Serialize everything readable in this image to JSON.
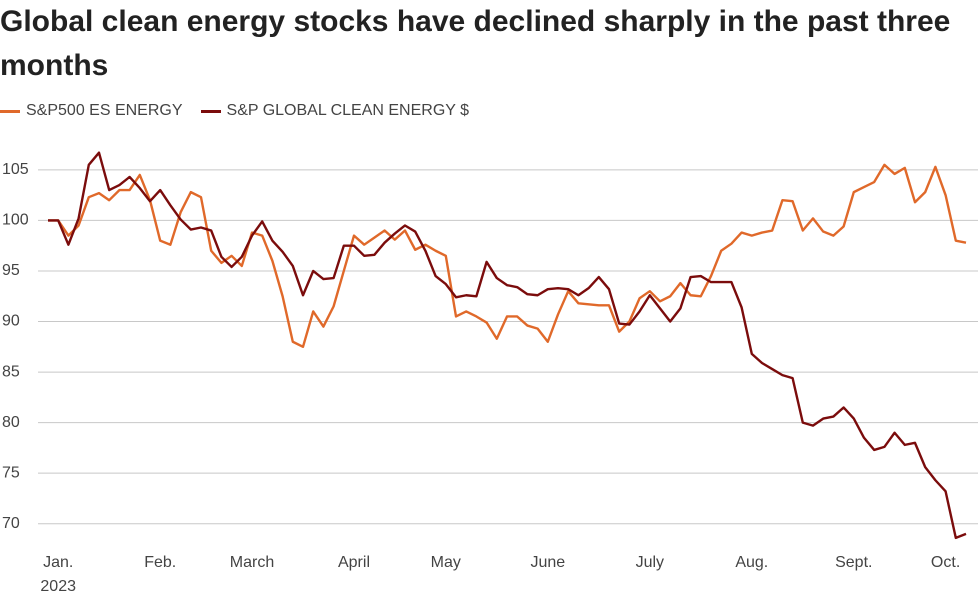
{
  "chart_data": {
    "type": "line",
    "title": "Global clean energy stocks have declined sharply in the past three months",
    "categories": [
      null,
      "Jan.",
      null,
      null,
      null,
      null,
      null,
      null,
      null,
      null,
      null,
      "Feb.",
      null,
      null,
      null,
      null,
      null,
      null,
      null,
      null,
      "March",
      null,
      null,
      null,
      null,
      null,
      null,
      null,
      null,
      null,
      "April",
      null,
      null,
      null,
      null,
      null,
      null,
      null,
      null,
      "May",
      null,
      null,
      null,
      null,
      null,
      null,
      null,
      null,
      null,
      "June",
      null,
      null,
      null,
      null,
      null,
      null,
      null,
      null,
      null,
      "July",
      null,
      null,
      null,
      null,
      null,
      null,
      null,
      null,
      null,
      "Aug.",
      null,
      null,
      null,
      null,
      null,
      null,
      null,
      null,
      null,
      "Sept.",
      null,
      null,
      null,
      null,
      null,
      null,
      null,
      null,
      "Oct.",
      null,
      null
    ],
    "year_label": "2023",
    "series": [
      {
        "name": "S&P500 ES ENERGY",
        "color": "#e0692a",
        "values": [
          100,
          100,
          98.5,
          99.5,
          102.3,
          102.7,
          102,
          103,
          103,
          104.5,
          102,
          98,
          97.6,
          100.8,
          102.8,
          102.3,
          97,
          95.8,
          96.5,
          95.5,
          98.8,
          98.5,
          96,
          92.5,
          88,
          87.5,
          91,
          89.5,
          91.5,
          95,
          98.5,
          97.6,
          98.3,
          99,
          98.1,
          99,
          97.1,
          97.6,
          97,
          96.5,
          90.5,
          91,
          90.5,
          89.9,
          88.3,
          90.5,
          90.5,
          89.6,
          89.3,
          88,
          90.7,
          93,
          91.8,
          91.7,
          91.6,
          91.6,
          89,
          90,
          92.3,
          93,
          92,
          92.5,
          93.8,
          92.6,
          92.5,
          94.5,
          97,
          97.7,
          98.8,
          98.5,
          98.8,
          99,
          102,
          101.9,
          99,
          100.2,
          98.9,
          98.5,
          99.4,
          102.8,
          103.3,
          103.8,
          105.5,
          104.6,
          105.2,
          101.8,
          102.8,
          105.3,
          102.5,
          98,
          97.8
        ]
      },
      {
        "name": "S&P GLOBAL CLEAN ENERGY $",
        "color": "#7b0c0c",
        "values": [
          100,
          100,
          97.6,
          100.2,
          105.5,
          106.7,
          103,
          103.5,
          104.3,
          103.2,
          101.9,
          103,
          101.5,
          100.1,
          99.1,
          99.3,
          99,
          96.4,
          95.4,
          96.4,
          98.5,
          99.9,
          98,
          96.9,
          95.5,
          92.6,
          95,
          94.2,
          94.3,
          97.5,
          97.5,
          96.5,
          96.6,
          97.8,
          98.7,
          99.5,
          98.9,
          97,
          94.5,
          93.7,
          92.4,
          92.6,
          92.5,
          95.9,
          94.3,
          93.6,
          93.4,
          92.7,
          92.6,
          93.2,
          93.3,
          93.2,
          92.6,
          93.3,
          94.4,
          93.2,
          89.8,
          89.7,
          91,
          92.6,
          91.3,
          90,
          91.3,
          94.4,
          94.5,
          93.9,
          93.9,
          93.9,
          91.4,
          86.8,
          85.9,
          85.3,
          84.7,
          84.4,
          80,
          79.7,
          80.4,
          80.6,
          81.5,
          80.4,
          78.5,
          77.3,
          77.6,
          79,
          77.8,
          78,
          75.6,
          74.3,
          73.2,
          68.6,
          69
        ]
      }
    ],
    "ylim": [
      67.5,
      108.5
    ],
    "yticks": [
      70,
      75,
      80,
      85,
      90,
      95,
      100,
      105
    ],
    "grid": true
  }
}
